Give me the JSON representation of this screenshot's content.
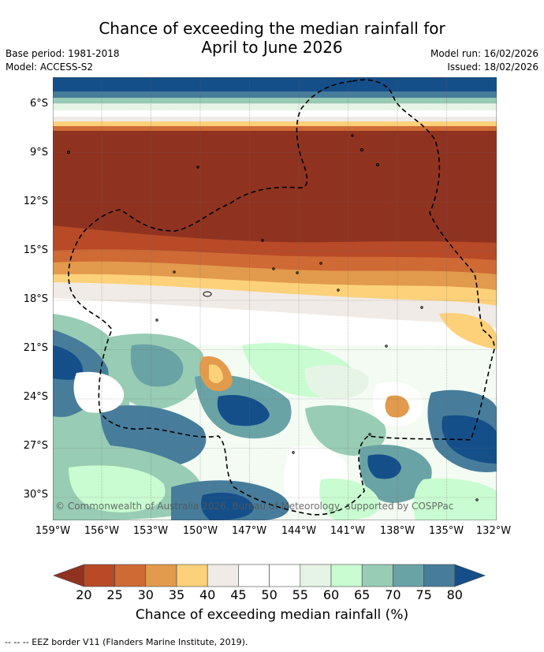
{
  "title_line1": "Chance of exceeding the median rainfall for",
  "title_line2": "April to June 2026",
  "meta": {
    "base_period": "Base period: 1981-2018",
    "model": "Model: ACCESS-S2",
    "model_run": "Model run: 16/02/2026",
    "issued": "Issued: 18/02/2026"
  },
  "latitude_labels": [
    "6°S",
    "9°S",
    "12°S",
    "15°S",
    "18°S",
    "21°S",
    "24°S",
    "27°S",
    "30°S"
  ],
  "longitude_labels": [
    "159°W",
    "156°W",
    "153°W",
    "150°W",
    "147°W",
    "144°W",
    "141°W",
    "138°W",
    "135°W",
    "132°W"
  ],
  "copyright": "© Commonwealth of Australia 2026, Bureau of Meteorology, supported by COSPPac",
  "colorbar": {
    "label": "Chance of exceeding median rainfall (%)",
    "ticks": [
      "20",
      "25",
      "30",
      "35",
      "40",
      "45",
      "50",
      "55",
      "60",
      "65",
      "70",
      "75",
      "80"
    ],
    "colors": [
      "#8f3320",
      "#b84a28",
      "#cf6a35",
      "#e29a4c",
      "#fdd17a",
      "#f0ebe6",
      "#ffffff",
      "#ffffff",
      "#e6f4e6",
      "#c9fcd0",
      "#98ccb4",
      "#6aa3a5",
      "#477d9b",
      "#154f8a"
    ]
  },
  "footer": "--  --  -- EEZ border V11 (Flanders Marine Institute, 2019)."
}
